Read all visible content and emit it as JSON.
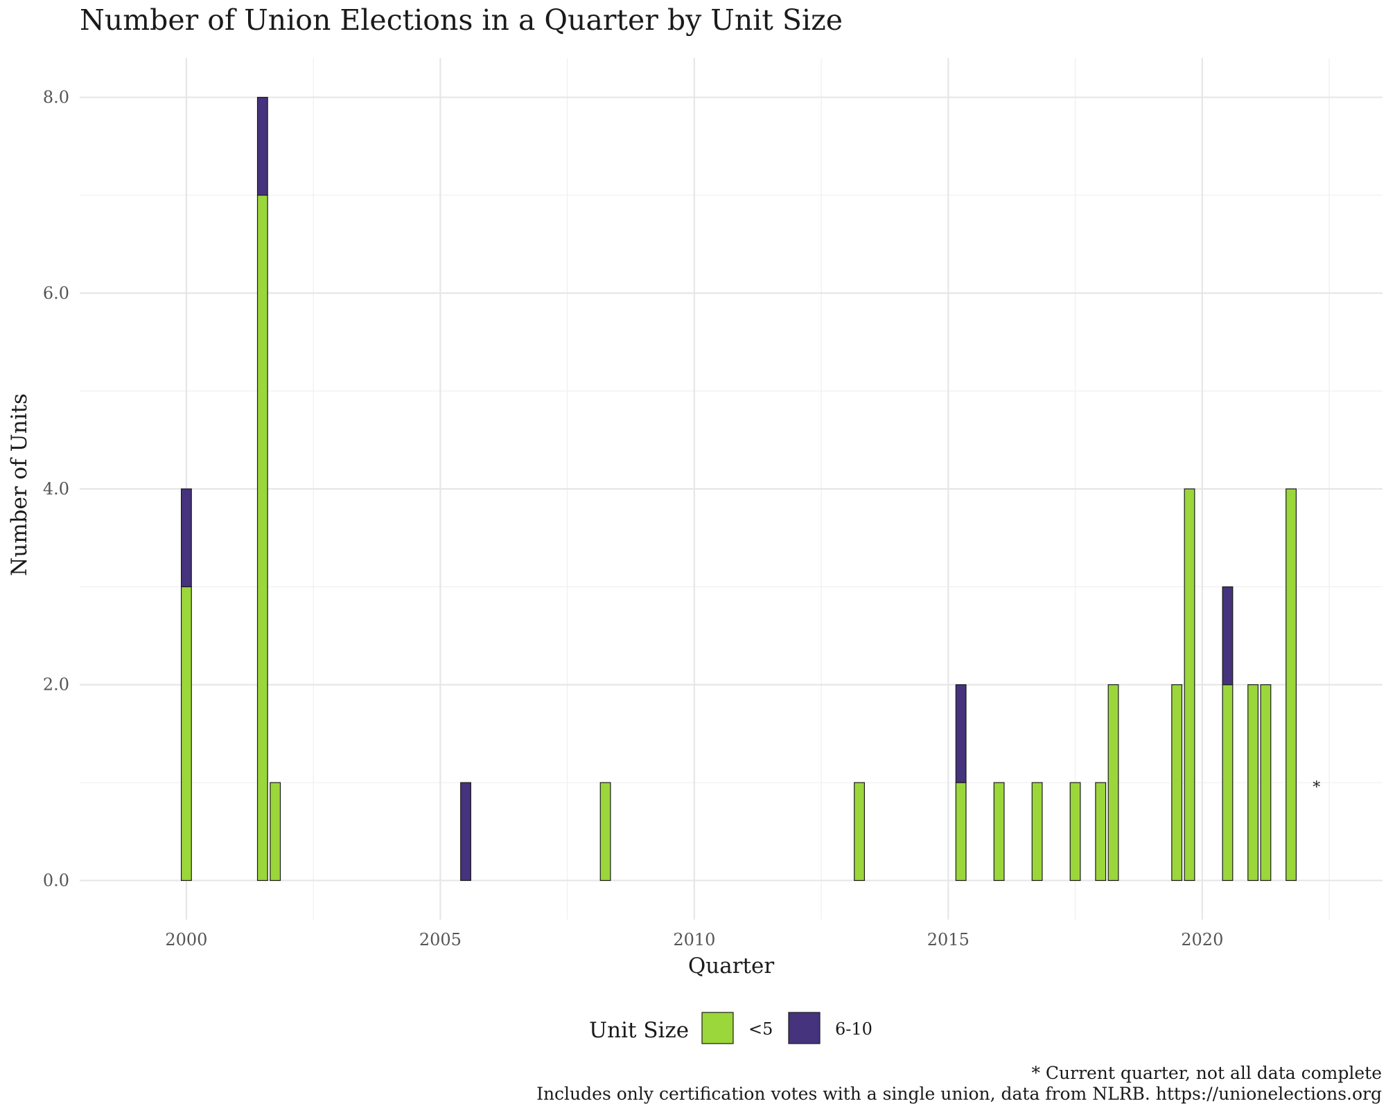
{
  "chart_data": {
    "type": "bar",
    "stacked": true,
    "title": "Number of Union Elections in a Quarter by Unit Size",
    "xlabel": "Quarter",
    "ylabel": "Number of Units",
    "xlim": [
      1997.9,
      2023.55
    ],
    "ylim": [
      -0.4,
      8.4
    ],
    "x_ticks": [
      2000,
      2005,
      2010,
      2015,
      2020
    ],
    "x_tick_labels": [
      "2000",
      "2005",
      "2010",
      "2015",
      "2020"
    ],
    "y_ticks": [
      0,
      2,
      4,
      6,
      8
    ],
    "y_tick_labels": [
      "0.0",
      "2.0",
      "4.0",
      "6.0",
      "8.0"
    ],
    "grid": true,
    "legend": {
      "title": "Unit Size",
      "position": "bottom"
    },
    "series": [
      {
        "name": "<5",
        "color": "#9bd63b"
      },
      {
        "name": "6-10",
        "color": "#45337d"
      }
    ],
    "bar_width_years": 0.2,
    "bars": [
      {
        "x": 2000.0,
        "values": [
          3,
          1
        ]
      },
      {
        "x": 2001.5,
        "values": [
          7,
          1
        ]
      },
      {
        "x": 2001.75,
        "values": [
          1,
          0
        ]
      },
      {
        "x": 2005.5,
        "values": [
          0,
          1
        ]
      },
      {
        "x": 2008.25,
        "values": [
          1,
          0
        ]
      },
      {
        "x": 2013.25,
        "values": [
          1,
          0
        ]
      },
      {
        "x": 2015.25,
        "values": [
          1,
          1
        ]
      },
      {
        "x": 2016.0,
        "values": [
          1,
          0
        ]
      },
      {
        "x": 2016.75,
        "values": [
          1,
          0
        ]
      },
      {
        "x": 2017.5,
        "values": [
          1,
          0
        ]
      },
      {
        "x": 2018.0,
        "values": [
          1,
          0
        ]
      },
      {
        "x": 2018.25,
        "values": [
          2,
          0
        ]
      },
      {
        "x": 2019.5,
        "values": [
          2,
          0
        ]
      },
      {
        "x": 2019.75,
        "values": [
          4,
          0
        ]
      },
      {
        "x": 2020.5,
        "values": [
          2,
          1
        ]
      },
      {
        "x": 2021.0,
        "values": [
          2,
          0
        ]
      },
      {
        "x": 2021.25,
        "values": [
          2,
          0
        ]
      },
      {
        "x": 2021.75,
        "values": [
          4,
          0
        ]
      }
    ],
    "annotations": [
      {
        "x": 2022.25,
        "y": 1,
        "text": "*"
      }
    ],
    "caption_lines": [
      "* Current quarter, not all data complete",
      "Includes only certification votes with a single union, data from NLRB. https://unionelections.org"
    ]
  }
}
